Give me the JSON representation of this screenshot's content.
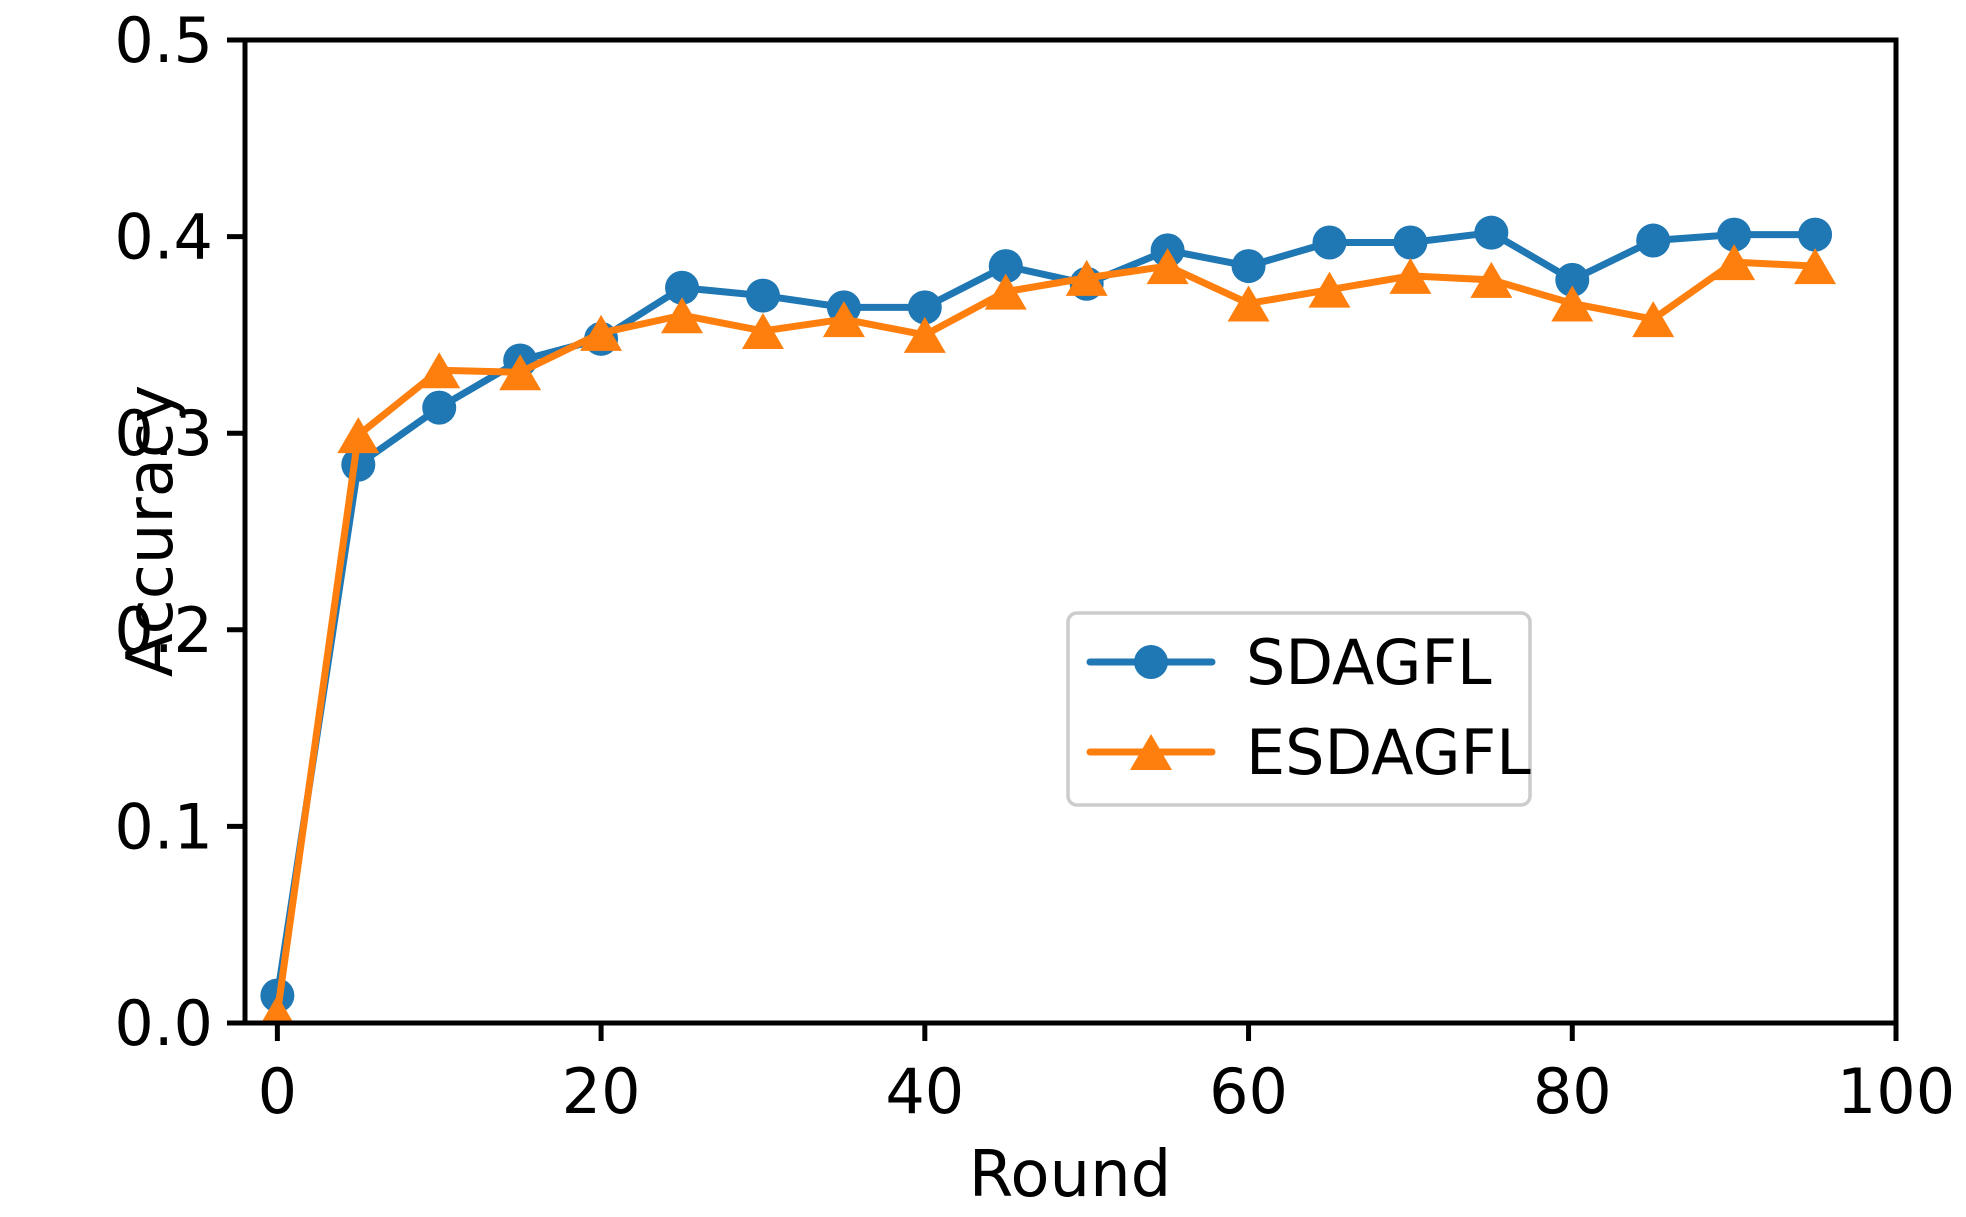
{
  "chart_data": {
    "type": "line",
    "title": "",
    "xlabel": "Round",
    "ylabel": "Accuracy",
    "xlim": [
      -2,
      100
    ],
    "ylim": [
      0.0,
      0.5
    ],
    "x_ticks": [
      0,
      20,
      40,
      60,
      80,
      100
    ],
    "y_ticks": [
      "0.0",
      "0.1",
      "0.2",
      "0.3",
      "0.4",
      "0.5"
    ],
    "grid": false,
    "legend_position": "center-right",
    "x": [
      0,
      5,
      10,
      15,
      20,
      25,
      30,
      35,
      40,
      45,
      50,
      55,
      60,
      65,
      70,
      75,
      80,
      85,
      90,
      95
    ],
    "series": [
      {
        "name": "SDAGFL",
        "color": "#1f77b4",
        "marker": "circle",
        "values": [
          0.014,
          0.284,
          0.313,
          0.337,
          0.348,
          0.374,
          0.37,
          0.364,
          0.364,
          0.385,
          0.376,
          0.393,
          0.385,
          0.397,
          0.397,
          0.402,
          0.378,
          0.398,
          0.401,
          0.401
        ]
      },
      {
        "name": "ESDAGFL",
        "color": "#ff7f0e",
        "marker": "triangle",
        "values": [
          0.005,
          0.299,
          0.332,
          0.331,
          0.351,
          0.36,
          0.352,
          0.358,
          0.35,
          0.372,
          0.379,
          0.385,
          0.366,
          0.373,
          0.38,
          0.378,
          0.366,
          0.358,
          0.387,
          0.385
        ]
      }
    ],
    "colors": {
      "axis": "#000000",
      "legend_border": "#cccccc",
      "background": "#ffffff"
    }
  }
}
